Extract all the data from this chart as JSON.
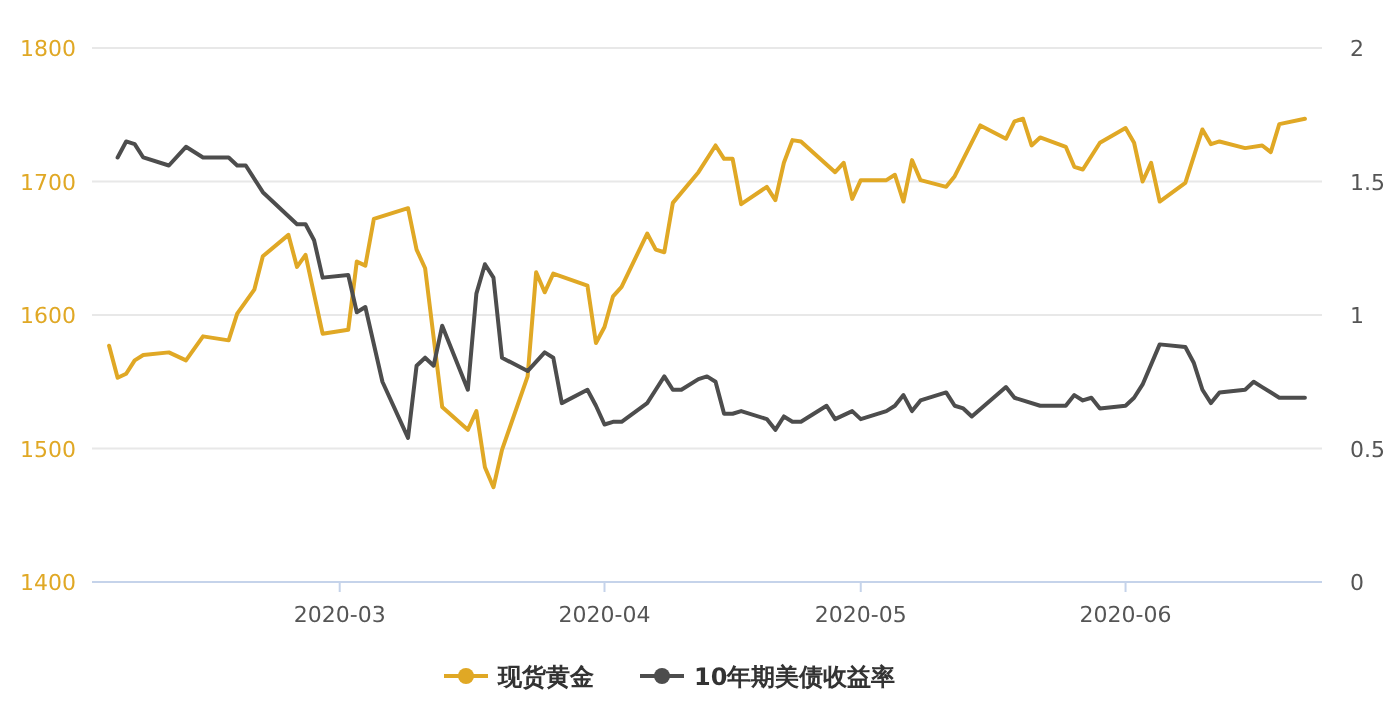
{
  "chart_data": {
    "type": "line",
    "xlim": [
      "2020-02-01",
      "2020-06-24"
    ],
    "xticks": [
      {
        "value": "2020-03-01",
        "label": "2020-03"
      },
      {
        "value": "2020-04-01",
        "label": "2020-04"
      },
      {
        "value": "2020-05-01",
        "label": "2020-05"
      },
      {
        "value": "2020-06-01",
        "label": "2020-06"
      }
    ],
    "ylim": [
      1400,
      1800
    ],
    "yticks": [
      1400,
      1500,
      1600,
      1700,
      1800
    ],
    "y2lim": [
      0,
      2
    ],
    "y2ticks": [
      0,
      0.5,
      1,
      1.5,
      2
    ],
    "grid": "y",
    "legend": "bottom",
    "series": [
      {
        "name": "现货黄金",
        "color": "#e0a825",
        "x": [
          "2020-02-03",
          "2020-02-04",
          "2020-02-05",
          "2020-02-06",
          "2020-02-07",
          "2020-02-10",
          "2020-02-12",
          "2020-02-14",
          "2020-02-17",
          "2020-02-18",
          "2020-02-20",
          "2020-02-21",
          "2020-02-24",
          "2020-02-25",
          "2020-02-26",
          "2020-02-28",
          "2020-03-02",
          "2020-03-03",
          "2020-03-04",
          "2020-03-05",
          "2020-03-09",
          "2020-03-10",
          "2020-03-11",
          "2020-03-13",
          "2020-03-16",
          "2020-03-17",
          "2020-03-18",
          "2020-03-19",
          "2020-03-20",
          "2020-03-23",
          "2020-03-24",
          "2020-03-25",
          "2020-03-26",
          "2020-03-30",
          "2020-03-31",
          "2020-04-01",
          "2020-04-02",
          "2020-04-03",
          "2020-04-06",
          "2020-04-07",
          "2020-04-08",
          "2020-04-09",
          "2020-04-12",
          "2020-04-14",
          "2020-04-15",
          "2020-04-16",
          "2020-04-17",
          "2020-04-20",
          "2020-04-21",
          "2020-04-22",
          "2020-04-23",
          "2020-04-24",
          "2020-04-28",
          "2020-04-29",
          "2020-04-30",
          "2020-05-01",
          "2020-05-04",
          "2020-05-05",
          "2020-05-06",
          "2020-05-07",
          "2020-05-08",
          "2020-05-11",
          "2020-05-12",
          "2020-05-15",
          "2020-05-18",
          "2020-05-19",
          "2020-05-20",
          "2020-05-21",
          "2020-05-22",
          "2020-05-25",
          "2020-05-26",
          "2020-05-27",
          "2020-05-29",
          "2020-06-01",
          "2020-06-02",
          "2020-06-03",
          "2020-06-04",
          "2020-06-05",
          "2020-06-08",
          "2020-06-10",
          "2020-06-11",
          "2020-06-12",
          "2020-06-15",
          "2020-06-17",
          "2020-06-18",
          "2020-06-19",
          "2020-06-22"
        ],
        "values": [
          1577,
          1553,
          1556,
          1566,
          1570,
          1572,
          1566,
          1584,
          1581,
          1601,
          1619,
          1644,
          1660,
          1636,
          1645,
          1586,
          1589,
          1640,
          1637,
          1672,
          1680,
          1649,
          1635,
          1531,
          1514,
          1528,
          1486,
          1471,
          1499,
          1554,
          1632,
          1617,
          1631,
          1622,
          1579,
          1591,
          1614,
          1621,
          1661,
          1649,
          1647,
          1684,
          1707,
          1727,
          1717,
          1717,
          1683,
          1696,
          1686,
          1714,
          1731,
          1730,
          1707,
          1714,
          1687,
          1701,
          1701,
          1705,
          1685,
          1716,
          1701,
          1696,
          1704,
          1742,
          1732,
          1745,
          1747,
          1727,
          1733,
          1726,
          1711,
          1709,
          1729,
          1740,
          1729,
          1700,
          1714,
          1685,
          1699,
          1739,
          1728,
          1730,
          1725,
          1727,
          1722,
          1743,
          1747
        ]
      },
      {
        "name": "10年期美债收益率",
        "color": "#4d4d4d",
        "axis": "y2",
        "x": [
          "2020-02-04",
          "2020-02-05",
          "2020-02-06",
          "2020-02-07",
          "2020-02-10",
          "2020-02-12",
          "2020-02-14",
          "2020-02-17",
          "2020-02-18",
          "2020-02-19",
          "2020-02-21",
          "2020-02-25",
          "2020-02-26",
          "2020-02-27",
          "2020-02-28",
          "2020-03-02",
          "2020-03-03",
          "2020-03-04",
          "2020-03-06",
          "2020-03-09",
          "2020-03-10",
          "2020-03-11",
          "2020-03-12",
          "2020-03-13",
          "2020-03-16",
          "2020-03-17",
          "2020-03-18",
          "2020-03-19",
          "2020-03-20",
          "2020-03-23",
          "2020-03-25",
          "2020-03-26",
          "2020-03-27",
          "2020-03-30",
          "2020-03-31",
          "2020-04-01",
          "2020-04-02",
          "2020-04-03",
          "2020-04-06",
          "2020-04-07",
          "2020-04-08",
          "2020-04-09",
          "2020-04-10",
          "2020-04-12",
          "2020-04-13",
          "2020-04-14",
          "2020-04-15",
          "2020-04-16",
          "2020-04-17",
          "2020-04-20",
          "2020-04-21",
          "2020-04-22",
          "2020-04-23",
          "2020-04-24",
          "2020-04-27",
          "2020-04-28",
          "2020-04-30",
          "2020-05-01",
          "2020-05-04",
          "2020-05-05",
          "2020-05-06",
          "2020-05-07",
          "2020-05-08",
          "2020-05-11",
          "2020-05-12",
          "2020-05-13",
          "2020-05-14",
          "2020-05-18",
          "2020-05-19",
          "2020-05-22",
          "2020-05-25",
          "2020-05-26",
          "2020-05-27",
          "2020-05-28",
          "2020-05-29",
          "2020-06-01",
          "2020-06-02",
          "2020-06-03",
          "2020-06-05",
          "2020-06-08",
          "2020-06-09",
          "2020-06-10",
          "2020-06-11",
          "2020-06-12",
          "2020-06-15",
          "2020-06-16",
          "2020-06-17",
          "2020-06-19",
          "2020-06-22"
        ],
        "values": [
          1.59,
          1.65,
          1.64,
          1.59,
          1.56,
          1.63,
          1.59,
          1.59,
          1.56,
          1.56,
          1.46,
          1.34,
          1.34,
          1.28,
          1.14,
          1.15,
          1.01,
          1.03,
          0.75,
          0.54,
          0.81,
          0.84,
          0.81,
          0.96,
          0.72,
          1.08,
          1.19,
          1.14,
          0.84,
          0.79,
          0.86,
          0.84,
          0.67,
          0.72,
          0.66,
          0.59,
          0.6,
          0.6,
          0.67,
          0.72,
          0.77,
          0.72,
          0.72,
          0.76,
          0.77,
          0.75,
          0.63,
          0.63,
          0.64,
          0.61,
          0.57,
          0.62,
          0.6,
          0.6,
          0.66,
          0.61,
          0.64,
          0.61,
          0.64,
          0.66,
          0.7,
          0.64,
          0.68,
          0.71,
          0.66,
          0.65,
          0.62,
          0.73,
          0.69,
          0.66,
          0.66,
          0.7,
          0.68,
          0.69,
          0.65,
          0.66,
          0.69,
          0.74,
          0.89,
          0.88,
          0.82,
          0.72,
          0.67,
          0.71,
          0.72,
          0.75,
          0.73,
          0.69,
          0.69
        ]
      }
    ]
  }
}
